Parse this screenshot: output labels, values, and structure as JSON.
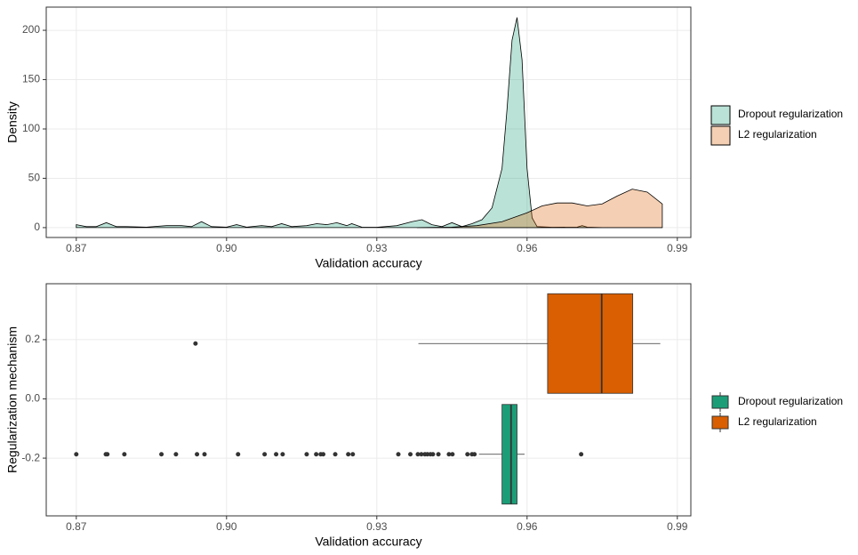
{
  "chart_data": [
    {
      "type": "density",
      "xlabel": "Validation accuracy",
      "ylabel": "Density",
      "xlim": [
        0.864,
        0.9927
      ],
      "ylim": [
        -10,
        223.5
      ],
      "xticks": [
        0.87,
        {
          "value": 0.9,
          "label": "0.90"
        },
        0.93,
        0.96,
        0.99
      ],
      "yticks": [
        0,
        50,
        100,
        150,
        200
      ],
      "grid": true,
      "legend": "right",
      "fill_opacity": 0.3,
      "series": [
        {
          "name": "Dropout regularization",
          "color": "#1b9e77",
          "x": [
            0.87,
            0.872,
            0.874,
            0.876,
            0.878,
            0.88,
            0.884,
            0.888,
            0.891,
            0.893,
            0.895,
            0.897,
            0.9,
            0.902,
            0.904,
            0.907,
            0.909,
            0.911,
            0.913,
            0.916,
            0.918,
            0.92,
            0.922,
            0.924,
            0.925,
            0.927,
            0.93,
            0.934,
            0.937,
            0.939,
            0.941,
            0.943,
            0.945,
            0.947,
            0.949,
            0.951,
            0.953,
            0.955,
            0.956,
            0.957,
            0.958,
            0.959,
            0.96,
            0.961,
            0.962,
            0.965,
            0.97,
            0.971,
            0.972,
            0.975,
            0.987
          ],
          "values": [
            3,
            1,
            1,
            5,
            1,
            1,
            0.5,
            2,
            2,
            1,
            6,
            1,
            0.5,
            3,
            0.5,
            2,
            1,
            4,
            1,
            2,
            4,
            3,
            5,
            2,
            4,
            0.5,
            0.3,
            2,
            6,
            8,
            3,
            1,
            5,
            1,
            4,
            8,
            20,
            60,
            120,
            190,
            213,
            170,
            60,
            10,
            1,
            0.3,
            0.5,
            2,
            0.5,
            0,
            0
          ]
        },
        {
          "name": "L2 regularization",
          "color": "#d95f02",
          "x": [
            0.938,
            0.945,
            0.95,
            0.955,
            0.96,
            0.963,
            0.966,
            0.969,
            0.972,
            0.975,
            0.978,
            0.981,
            0.984,
            0.987
          ],
          "values": [
            0,
            0.5,
            2,
            6,
            15,
            22,
            25,
            25,
            22,
            24,
            32,
            39,
            36,
            24
          ]
        }
      ]
    },
    {
      "type": "boxplot",
      "xlabel": "Validation accuracy",
      "ylabel": "Regularization mechanism",
      "xlim": [
        0.864,
        0.9927
      ],
      "ylim": [
        -0.395,
        0.389
      ],
      "xticks": [
        0.87,
        {
          "value": 0.9,
          "label": "0.90"
        },
        0.93,
        0.96,
        0.99
      ],
      "yticks": [
        -0.2,
        {
          "value": 0,
          "label": "0.0"
        },
        0.2
      ],
      "grid": true,
      "legend": "right",
      "series": [
        {
          "name": "Dropout regularization",
          "color": "#1b9e77",
          "y": -0.187,
          "whislo": 0.9504,
          "q1": 0.955,
          "median": 0.9568,
          "q3": 0.958,
          "whishi": 0.9595,
          "outliers": [
            0.87,
            0.8759,
            0.8762,
            0.8796,
            0.887,
            0.8899,
            0.8941,
            0.8956,
            0.9023,
            0.9076,
            0.9099,
            0.9112,
            0.916,
            0.9179,
            0.9188,
            0.9193,
            0.9217,
            0.9243,
            0.9252,
            0.9343,
            0.9367,
            0.9382,
            0.9389,
            0.9396,
            0.9401,
            0.9407,
            0.9412,
            0.9423,
            0.9444,
            0.9451,
            0.9481,
            0.949,
            0.9495,
            0.9708
          ]
        },
        {
          "name": "L2 regularization",
          "color": "#d95f02",
          "y": 0.187,
          "whislo": 0.9383,
          "q1": 0.9641,
          "median": 0.9749,
          "q3": 0.9811,
          "whishi": 0.9866,
          "outliers": [
            0.8938
          ]
        }
      ]
    }
  ]
}
